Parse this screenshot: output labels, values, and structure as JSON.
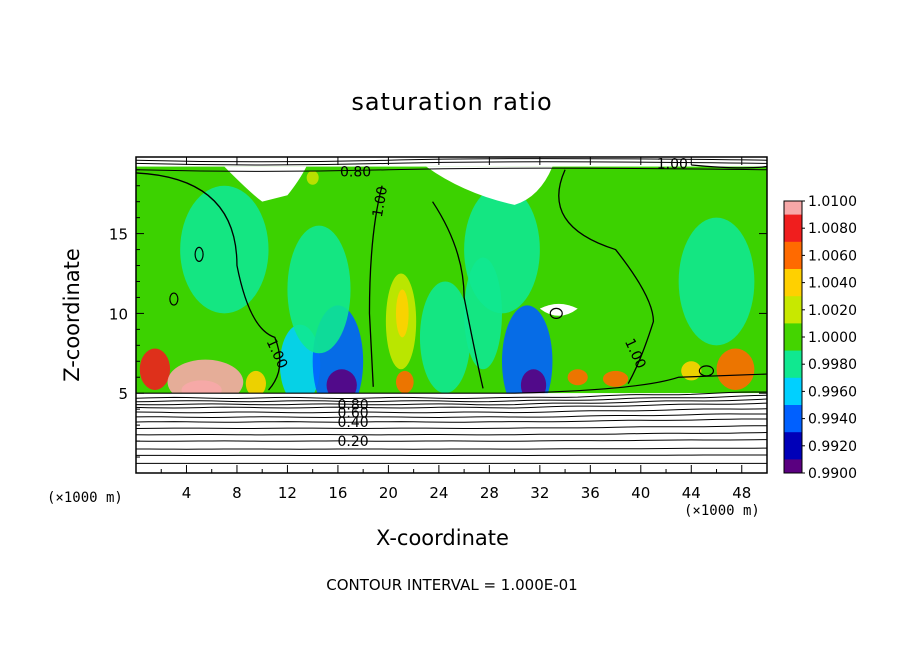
{
  "chart_data": {
    "type": "heatmap",
    "title": "saturation ratio",
    "xlabel": "X-coordinate",
    "ylabel": "Z-coordinate",
    "x_unit_label": "(×1000 m)",
    "x_ticks": [
      4,
      8,
      12,
      16,
      20,
      24,
      28,
      32,
      36,
      40,
      44,
      48
    ],
    "y_ticks": [
      5,
      10,
      15
    ],
    "xlim": [
      0,
      50
    ],
    "ylim": [
      0,
      19.8
    ],
    "annotation": "CONTOUR INTERVAL = 1.000E-01",
    "colorbar": {
      "labels": [
        "1.0100",
        "1.0080",
        "1.0060",
        "1.0040",
        "1.0020",
        "1.0000",
        "0.9980",
        "0.9960",
        "0.9940",
        "0.9920",
        "0.9900"
      ],
      "colors": [
        "#f7a8a8",
        "#f01e1e",
        "#ff6a00",
        "#ffd000",
        "#c8e800",
        "#44d400",
        "#10e890",
        "#00d0ff",
        "#0060ff",
        "#0000b8",
        "#5a0080"
      ]
    },
    "contour_labels": [
      {
        "text": "0.80",
        "x": 17.4,
        "z": 18.9
      },
      {
        "text": "1.00",
        "x": 42.5,
        "z": 19.4
      },
      {
        "text": "1.00",
        "x": 19.3,
        "z": 17.0
      },
      {
        "text": "1.00",
        "x": 11.2,
        "z": 7.5
      },
      {
        "text": "1.00",
        "x": 39.6,
        "z": 7.5
      },
      {
        "text": "0.80",
        "x": 17.2,
        "z": 4.3
      },
      {
        "text": "0.60",
        "x": 17.2,
        "z": 3.8
      },
      {
        "text": "0.40",
        "x": 17.2,
        "z": 3.2
      },
      {
        "text": "0.20",
        "x": 17.2,
        "z": 2.0
      }
    ],
    "contour_levels_below_cloud": [
      0.2,
      0.4,
      0.6,
      0.8,
      1.0
    ],
    "field_blobs": [
      {
        "x": 1.5,
        "z": 6.5,
        "rx": 1.2,
        "rz": 1.3,
        "v": 1.0085
      },
      {
        "x": 5.5,
        "z": 5.7,
        "rx": 3.0,
        "rz": 1.4,
        "v": 1.0095
      },
      {
        "x": 5.2,
        "z": 5.2,
        "rx": 1.6,
        "rz": 0.6,
        "v": 1.012
      },
      {
        "x": 9.5,
        "z": 5.6,
        "rx": 0.8,
        "rz": 0.8,
        "v": 1.005
      },
      {
        "x": 13.0,
        "z": 6.8,
        "rx": 1.6,
        "rz": 2.5,
        "v": 0.9962
      },
      {
        "x": 16.0,
        "z": 7.0,
        "rx": 2.0,
        "rz": 3.5,
        "v": 0.9935
      },
      {
        "x": 16.3,
        "z": 5.5,
        "rx": 1.2,
        "rz": 1.0,
        "v": 0.991
      },
      {
        "x": 14.5,
        "z": 11.5,
        "rx": 2.5,
        "rz": 4.0,
        "v": 0.9985
      },
      {
        "x": 21.0,
        "z": 9.5,
        "rx": 1.2,
        "rz": 3.0,
        "v": 1.0025
      },
      {
        "x": 21.1,
        "z": 10.0,
        "rx": 0.5,
        "rz": 1.5,
        "v": 1.004
      },
      {
        "x": 21.3,
        "z": 5.7,
        "rx": 0.7,
        "rz": 0.7,
        "v": 1.007
      },
      {
        "x": 24.5,
        "z": 8.5,
        "rx": 2.0,
        "rz": 3.5,
        "v": 0.9985
      },
      {
        "x": 27.5,
        "z": 10.0,
        "rx": 1.5,
        "rz": 3.5,
        "v": 0.9975
      },
      {
        "x": 31.0,
        "z": 7.0,
        "rx": 2.0,
        "rz": 3.5,
        "v": 0.994
      },
      {
        "x": 31.5,
        "z": 5.5,
        "rx": 1.0,
        "rz": 1.0,
        "v": 0.991
      },
      {
        "x": 29.0,
        "z": 14.0,
        "rx": 3.0,
        "rz": 4.0,
        "v": 0.9985
      },
      {
        "x": 35.0,
        "z": 6.0,
        "rx": 0.8,
        "rz": 0.5,
        "v": 1.007
      },
      {
        "x": 38.0,
        "z": 5.9,
        "rx": 1.0,
        "rz": 0.5,
        "v": 1.006
      },
      {
        "x": 47.5,
        "z": 6.5,
        "rx": 1.5,
        "rz": 1.3,
        "v": 1.006
      },
      {
        "x": 46.0,
        "z": 12.0,
        "rx": 3.0,
        "rz": 4.0,
        "v": 0.9988
      },
      {
        "x": 7.0,
        "z": 14.0,
        "rx": 3.5,
        "rz": 4.0,
        "v": 0.9988
      },
      {
        "x": 44.0,
        "z": 6.4,
        "rx": 0.8,
        "rz": 0.6,
        "v": 1.005
      }
    ]
  }
}
